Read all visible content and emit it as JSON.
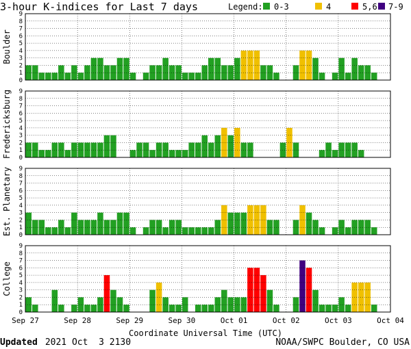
{
  "title": "3-hour K-indices for Last 7 days",
  "legend": {
    "label": "Legend:",
    "items": [
      {
        "label": "0-3",
        "color": "#22a022"
      },
      {
        "label": "4",
        "color": "#f0c000"
      },
      {
        "label": "5,6",
        "color": "#ff0000"
      },
      {
        "label": "7-9",
        "color": "#400080"
      }
    ]
  },
  "footer": {
    "updated_label": "Updated",
    "updated_value": " 2021 Oct  3 2130",
    "source": "NOAA/SWPC Boulder, CO USA"
  },
  "chart_data": {
    "type": "bar",
    "xlabel": "Coordinate Universal Time (UTC)",
    "x_ticks": [
      "Sep 27",
      "Sep 28",
      "Sep 29",
      "Sep 30",
      "Oct 01",
      "Oct 02",
      "Oct 03",
      "Oct 04"
    ],
    "y_ticks": [
      "0",
      "1",
      "2",
      "3",
      "4",
      "5",
      "6",
      "7",
      "8",
      "9"
    ],
    "ylim": [
      0,
      9
    ],
    "grid": true,
    "panels": [
      {
        "name": "Boulder",
        "values": [
          2,
          2,
          1,
          1,
          1,
          2,
          1,
          2,
          1,
          2,
          3,
          3,
          2,
          2,
          3,
          3,
          1,
          0,
          1,
          2,
          2,
          3,
          2,
          2,
          1,
          1,
          1,
          2,
          3,
          3,
          2,
          2,
          3,
          4,
          4,
          4,
          2,
          2,
          1,
          0,
          0,
          2,
          4,
          4,
          3,
          1,
          0,
          1,
          3,
          1,
          3,
          2,
          2,
          1,
          0,
          0
        ]
      },
      {
        "name": "Fredericksburg",
        "values": [
          2,
          2,
          1,
          1,
          2,
          2,
          1,
          2,
          2,
          2,
          2,
          2,
          3,
          3,
          0,
          0,
          1,
          2,
          2,
          1,
          2,
          2,
          1,
          1,
          1,
          2,
          2,
          3,
          2,
          3,
          4,
          3,
          4,
          2,
          2,
          0,
          0,
          0,
          0,
          2,
          4,
          2,
          0,
          0,
          0,
          1,
          2,
          1,
          2,
          2,
          2,
          1,
          0,
          0,
          0,
          0
        ]
      },
      {
        "name": "Est. Planetary",
        "values": [
          3,
          2,
          2,
          1,
          1,
          2,
          1,
          3,
          2,
          2,
          2,
          3,
          2,
          2,
          3,
          3,
          1,
          0,
          1,
          2,
          2,
          1,
          2,
          2,
          1,
          1,
          1,
          1,
          1,
          2,
          4,
          3,
          3,
          3,
          4,
          4,
          4,
          2,
          2,
          0,
          0,
          2,
          4,
          3,
          2,
          1,
          0,
          1,
          2,
          1,
          2,
          2,
          2,
          1,
          0,
          0
        ]
      },
      {
        "name": "College",
        "values": [
          2,
          1,
          0,
          0,
          3,
          1,
          0,
          1,
          2,
          1,
          1,
          2,
          5,
          3,
          2,
          1,
          0,
          0,
          0,
          3,
          4,
          2,
          1,
          1,
          2,
          0,
          1,
          1,
          1,
          2,
          3,
          2,
          2,
          2,
          6,
          6,
          5,
          3,
          1,
          0,
          0,
          2,
          7,
          6,
          3,
          1,
          1,
          1,
          2,
          1,
          4,
          4,
          4,
          1,
          0,
          0
        ]
      }
    ]
  }
}
